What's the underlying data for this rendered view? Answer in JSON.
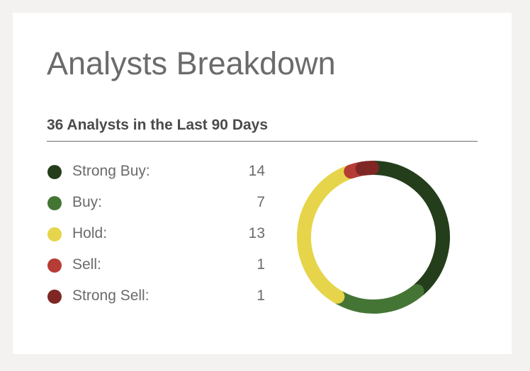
{
  "card": {
    "title": "Analysts Breakdown",
    "subtitle": "36 Analysts in the Last 90 Days"
  },
  "chart_data": {
    "type": "pie",
    "subtype": "donut",
    "categories": [
      "Strong Buy",
      "Buy",
      "Hold",
      "Sell",
      "Strong Sell"
    ],
    "values": [
      14,
      7,
      13,
      1,
      1
    ],
    "colors": [
      "#243e1c",
      "#447535",
      "#e6d54a",
      "#b63c36",
      "#7e2724"
    ],
    "legend_labels": [
      "Strong Buy:",
      "Buy:",
      "Hold:",
      "Sell:",
      "Strong Sell:"
    ],
    "total": 36,
    "legend": "left"
  }
}
